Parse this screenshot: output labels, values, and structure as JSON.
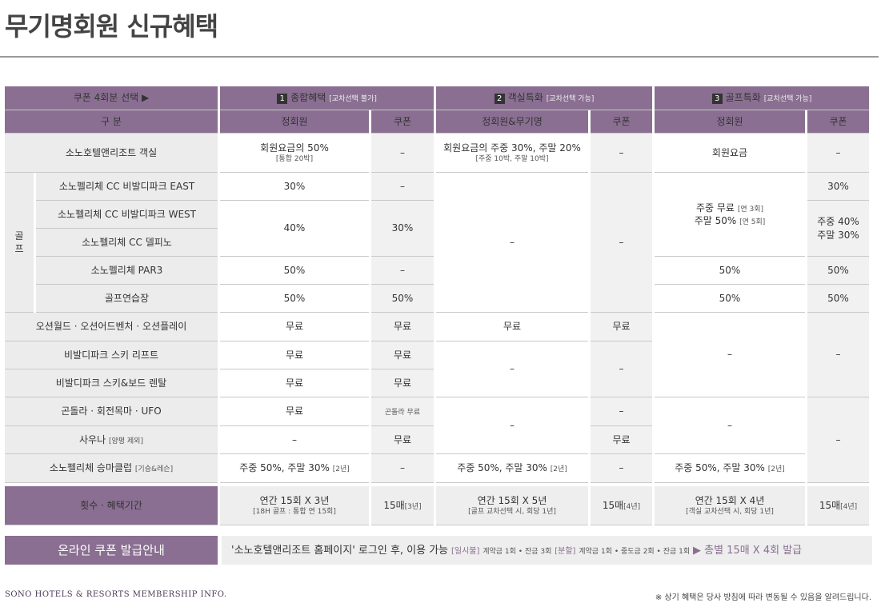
{
  "title": "무기명회원 신규혜택",
  "headers": {
    "select_coupon": "쿠폰 4회분 선택 ▶",
    "cat1_num": "1",
    "cat1_label": "종합혜택",
    "cat1_note": "[교차선택 불가]",
    "cat2_num": "2",
    "cat2_label": "객실특화",
    "cat2_note": "[교차선택 가능]",
    "cat3_num": "3",
    "cat3_label": "골프특화",
    "cat3_note": "[교차선택 가능]",
    "division": "구 분",
    "regular": "정회원",
    "coupon": "쿠폰",
    "regular_bearer": "정회원&무기명"
  },
  "dash": "–",
  "rows": {
    "room": {
      "label": "소노호텔앤리조트 객실",
      "c1": "회원요금의 50%",
      "c1_sub": "[통합 20박]",
      "c3": "회원요금의 주중 30%, 주말 20%",
      "c3_sub": "[주중 10박, 주말 10박]",
      "c5": "회원요금"
    },
    "golf_label": "골\n프",
    "east": {
      "label": "소노펠리체 CC 비발디파크 EAST",
      "c1": "30%",
      "c6": "30%"
    },
    "west": {
      "label": "소노펠리체 CC 비발디파크 WEST",
      "c1": "40%",
      "c2": "30%",
      "c5_line1": "주중 무료",
      "c5_line1_sub": "[연 3회]",
      "c5_line2": "주말 50%",
      "c5_line2_sub": "[연 5회]",
      "c6_line1": "주중 40%",
      "c6_line2": "주말 30%"
    },
    "delpino": {
      "label": "소노펠리체 CC 델피노"
    },
    "par3": {
      "label": "소노펠리체 PAR3",
      "c1": "50%",
      "c5": "50%",
      "c6": "50%"
    },
    "range": {
      "label": "골프연습장",
      "c1": "50%",
      "c2": "50%",
      "c5": "50%",
      "c6": "50%"
    },
    "ocean": {
      "label": "오션월드 · 오션어드벤처 · 오션플레이",
      "c1": "무료",
      "c2": "무료",
      "c3": "무료",
      "c4": "무료"
    },
    "lift": {
      "label": "비발디파크 스키 리프트",
      "c1": "무료",
      "c2": "무료"
    },
    "rental": {
      "label": "비발디파크 스키&보드 렌탈",
      "c1": "무료",
      "c2": "무료"
    },
    "gondola": {
      "label": "곤돌라 · 회전목마 · UFO",
      "c1": "무료",
      "c2": "곤돌라 무료"
    },
    "sauna": {
      "label": "사우나",
      "label_sub": "[양평 제외]",
      "c2": "무료",
      "c4": "무료"
    },
    "horse": {
      "label": "소노펠리체 승마클럽",
      "label_sub": "[기승&레슨]",
      "c1": "주중 50%, 주말 30%",
      "c1_sub": "[2년]",
      "c3": "주중 50%, 주말 30%",
      "c3_sub": "[2년]",
      "c5": "주중 50%, 주말 30%",
      "c5_sub": "[2년]"
    }
  },
  "period": {
    "label": "횟수 · 혜택기간",
    "c1": "연간 15회 X 3년",
    "c1_sub": "[18H 골프 : 통합 연 15회]",
    "c2": "15매",
    "c2_sub": "[3년]",
    "c3": "연간 15회 X 5년",
    "c3_sub": "[골프 교차선택 시, 회당 1년]",
    "c4": "15매",
    "c4_sub": "[4년]",
    "c5": "연간 15회 X 4년",
    "c5_sub": "[객실 교차선택 시, 회당 1년]",
    "c6": "15매",
    "c6_sub": "[4년]"
  },
  "online": {
    "label": "온라인 쿠폰 발급안내",
    "main": "'소노호텔앤리조트 홈페이지' 로그인 후, 이용 가능",
    "lump_tag": "[일시불]",
    "lump_text": "계약금 1회 • 잔금 3회",
    "split_tag": "[분할]",
    "split_text": "계약금 1회 • 중도금 2회 • 잔금 1회",
    "total": "▶ 총별 15매 X 4회 발급"
  },
  "footer": {
    "left": "SONO HOTELS & RESORTS MEMBERSHIP INFO.",
    "right": "※ 상기 혜택은 당사 방침에 따라 변동될 수 있음을 알려드립니다."
  }
}
